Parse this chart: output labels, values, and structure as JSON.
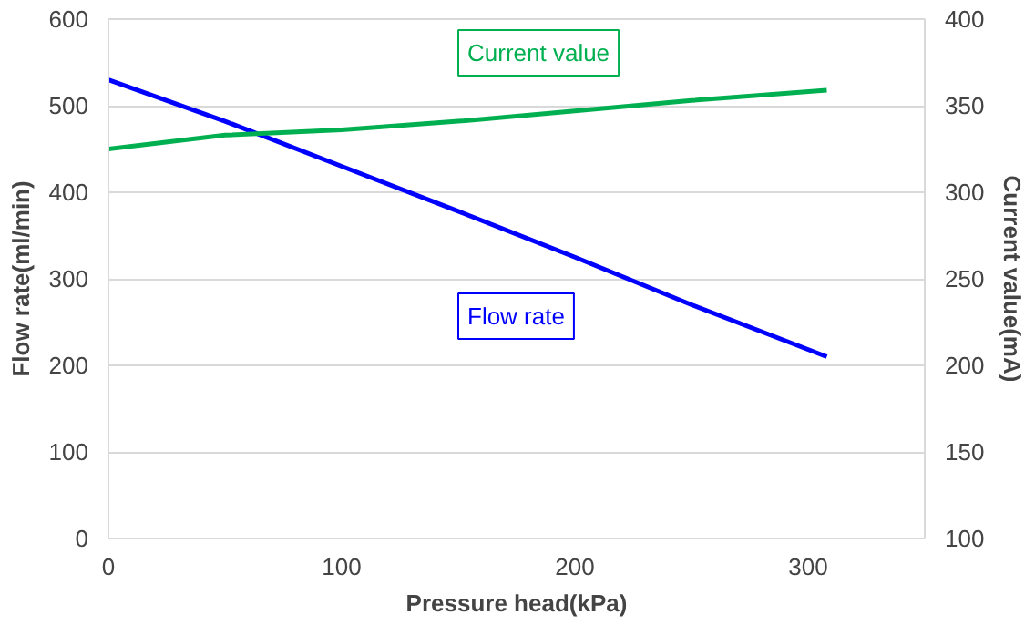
{
  "chart_data": {
    "type": "line",
    "xlabel": "Pressure head(kPa)",
    "ylabel": "Flow rate(ml/min)",
    "y2label": "Current value(mA)",
    "xlim": [
      0,
      350
    ],
    "xticks": [
      0,
      100,
      200,
      300
    ],
    "ylim": [
      0,
      600
    ],
    "yticks": [
      0,
      100,
      200,
      300,
      400,
      500,
      600
    ],
    "y2lim": [
      100,
      400
    ],
    "y2ticks": [
      100,
      150,
      200,
      250,
      300,
      350,
      400
    ],
    "grid": "y",
    "series": [
      {
        "name": "Flow rate",
        "color": "#0000ff",
        "x": [
          0,
          50,
          100,
          150,
          200,
          250,
          308
        ],
        "values": [
          530,
          482,
          430,
          378,
          325,
          270,
          210
        ]
      },
      {
        "name": "Current value",
        "color": "#00b050",
        "axis": "y2",
        "x": [
          0,
          50,
          100,
          150,
          200,
          250,
          308
        ],
        "values": [
          325,
          333,
          336,
          341,
          347,
          353,
          359
        ]
      }
    ]
  }
}
